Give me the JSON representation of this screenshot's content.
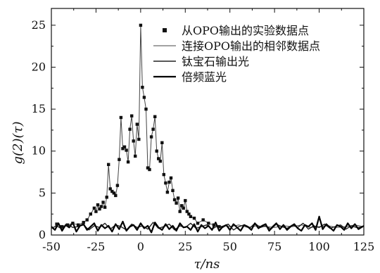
{
  "chart_data": {
    "type": "line",
    "xlabel": "τ/ns",
    "ylabel": "g(2)(τ)",
    "xlim": [
      -50,
      125
    ],
    "ylim": [
      0,
      27
    ],
    "x_ticks": [
      -50,
      -25,
      0,
      25,
      50,
      75,
      100,
      125
    ],
    "y_ticks": [
      0,
      5,
      10,
      15,
      20,
      25
    ],
    "grid": false,
    "legend_position": "top-right",
    "series": [
      {
        "name": "从OPO输出的实验数据点",
        "style": "markers",
        "color": "#111111",
        "x": [
          -47,
          -44,
          -41,
          -38,
          -35,
          -32,
          -30,
          -28,
          -26,
          -25,
          -24,
          -23,
          -22,
          -21,
          -20,
          -19,
          -18,
          -17,
          -16,
          -15,
          -14,
          -13,
          -12,
          -11,
          -10,
          -9,
          -8,
          -7,
          -6,
          -5,
          -4,
          -3,
          -2,
          -1,
          0,
          1,
          2,
          3,
          4,
          5,
          6,
          7,
          8,
          9,
          10,
          11,
          12,
          13,
          14,
          15,
          16,
          17,
          18,
          19,
          20,
          21,
          22,
          23,
          24,
          25,
          26,
          27,
          28,
          30,
          32,
          35,
          38,
          41,
          44
        ],
        "y": [
          1.3,
          1.0,
          1.2,
          1.4,
          1.2,
          1.5,
          1.8,
          2.5,
          3.2,
          2.8,
          3.6,
          3.1,
          3.4,
          3.9,
          3.3,
          4.5,
          8.4,
          5.5,
          5.2,
          5.0,
          4.7,
          5.9,
          9.0,
          14.0,
          10.3,
          10.5,
          10.1,
          8.7,
          12.6,
          14.2,
          11.2,
          9.4,
          13.2,
          11.4,
          25.0,
          17.6,
          16.4,
          15.0,
          8.0,
          7.8,
          11.7,
          12.6,
          14.1,
          10.0,
          9.1,
          8.8,
          11.0,
          7.2,
          6.2,
          5.1,
          6.3,
          6.8,
          5.3,
          4.2,
          3.8,
          4.4,
          2.8,
          3.5,
          3.2,
          4.1,
          2.8,
          2.5,
          2.2,
          2.0,
          1.4,
          1.8,
          1.4,
          1.2,
          1.0
        ]
      },
      {
        "name": "连接OPO输出的相邻数据点",
        "style": "thin-line",
        "color": "#444444",
        "x": [
          -47,
          -44,
          -41,
          -38,
          -35,
          -32,
          -30,
          -28,
          -26,
          -25,
          -24,
          -23,
          -22,
          -21,
          -20,
          -19,
          -18,
          -17,
          -16,
          -15,
          -14,
          -13,
          -12,
          -11,
          -10,
          -9,
          -8,
          -7,
          -6,
          -5,
          -4,
          -3,
          -2,
          -1,
          0,
          1,
          2,
          3,
          4,
          5,
          6,
          7,
          8,
          9,
          10,
          11,
          12,
          13,
          14,
          15,
          16,
          17,
          18,
          19,
          20,
          21,
          22,
          23,
          24,
          25,
          26,
          27,
          28,
          30,
          32,
          35,
          38,
          41,
          44,
          47,
          50,
          55,
          60,
          65,
          70,
          75,
          80,
          85,
          90,
          95,
          100,
          105,
          110,
          115,
          120,
          125
        ],
        "y": [
          1.3,
          1.0,
          1.2,
          1.4,
          1.2,
          1.5,
          1.8,
          2.5,
          3.2,
          2.8,
          3.6,
          3.1,
          3.4,
          3.9,
          3.3,
          4.5,
          8.4,
          5.5,
          5.2,
          5.0,
          4.7,
          5.9,
          9.0,
          14.0,
          10.3,
          10.5,
          10.1,
          8.7,
          12.6,
          14.2,
          11.2,
          9.4,
          13.2,
          11.4,
          25.0,
          17.6,
          16.4,
          15.0,
          8.0,
          7.8,
          11.7,
          12.6,
          14.1,
          10.0,
          9.1,
          8.8,
          11.0,
          7.2,
          6.2,
          5.1,
          6.3,
          6.8,
          5.3,
          4.2,
          3.8,
          4.4,
          2.8,
          3.5,
          3.2,
          4.1,
          2.8,
          2.5,
          2.2,
          2.0,
          1.4,
          1.8,
          1.4,
          1.2,
          1.0,
          1.1,
          1.0,
          1.2,
          0.9,
          1.1,
          1.0,
          0.9,
          1.1,
          1.0,
          1.2,
          0.9,
          1.0,
          1.1,
          0.9,
          1.0,
          1.2,
          1.0
        ]
      },
      {
        "name": "钛宝石输出光",
        "style": "medium-line",
        "color": "#222222",
        "x": [
          -50,
          -47,
          -44,
          -41,
          -38,
          -35,
          -32,
          -29,
          -26,
          -23,
          -20,
          -17,
          -14,
          -11,
          -8,
          -5,
          -2,
          1,
          4,
          7,
          10,
          13,
          16,
          19,
          22,
          25,
          28,
          31,
          34,
          37,
          40,
          43,
          46,
          49,
          52,
          55,
          58,
          61,
          64,
          67,
          70,
          73,
          76,
          79,
          82,
          85,
          88,
          91,
          94,
          97,
          100,
          103,
          106,
          109,
          112,
          115,
          118,
          121,
          125
        ],
        "y": [
          0.8,
          1.1,
          0.7,
          1.3,
          0.9,
          1.0,
          1.2,
          0.6,
          1.1,
          0.9,
          1.4,
          0.7,
          1.2,
          1.0,
          0.6,
          1.3,
          0.9,
          1.1,
          0.7,
          1.5,
          0.8,
          1.0,
          1.3,
          0.6,
          1.1,
          0.9,
          1.4,
          0.8,
          1.0,
          1.2,
          0.7,
          1.1,
          0.9,
          1.3,
          0.6,
          1.0,
          1.2,
          0.8,
          1.4,
          0.9,
          1.1,
          0.7,
          1.3,
          1.0,
          0.8,
          1.2,
          0.9,
          1.4,
          0.7,
          1.1,
          0.9,
          1.3,
          0.8,
          1.0,
          1.2,
          0.7,
          1.1,
          0.9,
          1.0
        ]
      },
      {
        "name": "倍频蓝光",
        "style": "thick-line",
        "color": "#000000",
        "x": [
          -50,
          -48,
          -46,
          -44,
          -42,
          -40,
          -38,
          -36,
          -34,
          -32,
          -30,
          -28,
          -26,
          -24,
          -22,
          -20,
          -18,
          -16,
          -14,
          -12,
          -10,
          -8,
          -6,
          -4,
          -2,
          0,
          2,
          4,
          6,
          8,
          10,
          12,
          14,
          16,
          18,
          20,
          22,
          24,
          26,
          28,
          30,
          32,
          34,
          36,
          38,
          40,
          42,
          44,
          46,
          48,
          50,
          52,
          54,
          56,
          58,
          60,
          62,
          64,
          66,
          68,
          70,
          72,
          74,
          76,
          78,
          80,
          82,
          84,
          86,
          88,
          90,
          92,
          94,
          96,
          98,
          100,
          102,
          104,
          106,
          108,
          110,
          112,
          114,
          116,
          118,
          120,
          122,
          125
        ],
        "y": [
          1.0,
          0.6,
          1.4,
          0.5,
          1.2,
          0.9,
          1.5,
          0.4,
          1.1,
          1.3,
          0.6,
          1.0,
          1.4,
          0.5,
          1.2,
          0.8,
          1.1,
          0.4,
          1.3,
          0.7,
          1.6,
          0.5,
          1.0,
          1.2,
          0.6,
          1.4,
          0.8,
          1.1,
          0.3,
          1.5,
          0.9,
          0.6,
          1.3,
          0.7,
          1.1,
          0.5,
          1.4,
          0.9,
          1.0,
          0.6,
          1.3,
          0.4,
          1.2,
          0.8,
          1.1,
          0.6,
          1.5,
          0.5,
          1.0,
          1.2,
          0.6,
          1.3,
          0.9,
          0.5,
          1.2,
          1.0,
          0.6,
          1.4,
          0.8,
          1.1,
          1.3,
          0.5,
          1.0,
          1.4,
          0.7,
          1.2,
          0.6,
          1.0,
          1.3,
          0.8,
          0.5,
          1.2,
          1.0,
          1.4,
          0.6,
          2.2,
          0.7,
          1.3,
          0.9,
          0.5,
          1.2,
          1.0,
          0.6,
          1.4,
          0.8,
          1.3,
          0.7,
          1.1
        ]
      }
    ]
  }
}
